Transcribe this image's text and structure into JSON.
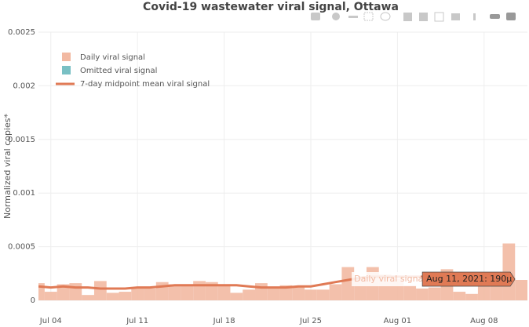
{
  "chart_data": {
    "type": "bar",
    "title": "Covid-19 wastewater viral signal, Ottawa",
    "y_label": "Normalized viral copies*",
    "x": [
      "2021-07-03",
      "2021-07-04",
      "2021-07-05",
      "2021-07-06",
      "2021-07-07",
      "2021-07-08",
      "2021-07-09",
      "2021-07-10",
      "2021-07-11",
      "2021-07-12",
      "2021-07-13",
      "2021-07-14",
      "2021-07-15",
      "2021-07-16",
      "2021-07-17",
      "2021-07-18",
      "2021-07-19",
      "2021-07-20",
      "2021-07-21",
      "2021-07-22",
      "2021-07-23",
      "2021-07-24",
      "2021-07-25",
      "2021-07-26",
      "2021-07-27",
      "2021-07-28",
      "2021-07-29",
      "2021-07-30",
      "2021-07-31",
      "2021-08-01",
      "2021-08-02",
      "2021-08-03",
      "2021-08-04",
      "2021-08-05",
      "2021-08-06",
      "2021-08-07",
      "2021-08-08",
      "2021-08-09",
      "2021-08-10",
      "2021-08-11"
    ],
    "series": [
      {
        "name": "Daily viral signal",
        "type": "bar",
        "color": "#f2b9a2",
        "values": [
          0.00016,
          8e-05,
          0.00015,
          0.00016,
          5e-05,
          0.00018,
          7e-05,
          8e-05,
          0.00012,
          0.00011,
          0.00017,
          0.00015,
          0.00015,
          0.00018,
          0.00017,
          0.00015,
          7e-05,
          0.0001,
          0.00016,
          0.00012,
          0.00014,
          0.00013,
          0.0001,
          0.0001,
          0.00015,
          0.00031,
          0.0002,
          0.00031,
          0.00024,
          0.0002,
          0.00014,
          0.00011,
          0.00012,
          0.00029,
          8e-05,
          6e-05,
          0.0002,
          0.00024,
          0.00053,
          0.00019
        ]
      },
      {
        "name": "Omitted viral signal",
        "type": "bar",
        "color": "#79c0c4",
        "values": [
          null,
          null,
          null,
          null,
          null,
          null,
          null,
          null,
          null,
          null,
          null,
          null,
          null,
          null,
          null,
          null,
          null,
          null,
          null,
          null,
          null,
          null,
          null,
          null,
          null,
          null,
          null,
          null,
          null,
          null,
          null,
          null,
          null,
          null,
          null,
          null,
          null,
          null,
          null,
          null
        ]
      },
      {
        "name": "7-day midpoint mean viral signal",
        "type": "line",
        "color": "#e07a55",
        "values": [
          0.00013,
          0.00012,
          0.00013,
          0.00012,
          0.00012,
          0.00011,
          0.00011,
          0.00011,
          0.00012,
          0.00012,
          0.00013,
          0.00014,
          0.00014,
          0.00014,
          0.00014,
          0.00014,
          0.00014,
          0.00013,
          0.00012,
          0.00012,
          0.00012,
          0.00013,
          0.00013,
          0.00015,
          0.00017,
          0.00019,
          0.00021,
          0.00022,
          0.00022,
          0.00022,
          0.00022,
          0.00022,
          0.00022,
          0.00022,
          0.00023,
          0.00023,
          0.00024,
          0.00025,
          0.00025,
          null
        ]
      }
    ],
    "xlim": [
      "2021-07-03T00:00:00Z",
      "2021-08-11T12:00:00Z"
    ],
    "xticks": [
      {
        "value": "2021-07-04",
        "label": "Jul 04"
      },
      {
        "value": "2021-07-11",
        "label": "Jul 11"
      },
      {
        "value": "2021-07-18",
        "label": "Jul 18"
      },
      {
        "value": "2021-07-25",
        "label": "Jul 25"
      },
      {
        "value": "2021-08-01",
        "label": "Aug 01"
      },
      {
        "value": "2021-08-08",
        "label": "Aug 08"
      }
    ],
    "ylim": [
      0,
      0.0025
    ],
    "yticks": [
      0,
      0.0005,
      0.001,
      0.0015,
      0.002,
      0.0025
    ],
    "grid": true,
    "legend": "top-left",
    "hover": {
      "name": "Daily viral signal",
      "label": "Aug 11, 2021: 190µ",
      "point": 39
    }
  }
}
